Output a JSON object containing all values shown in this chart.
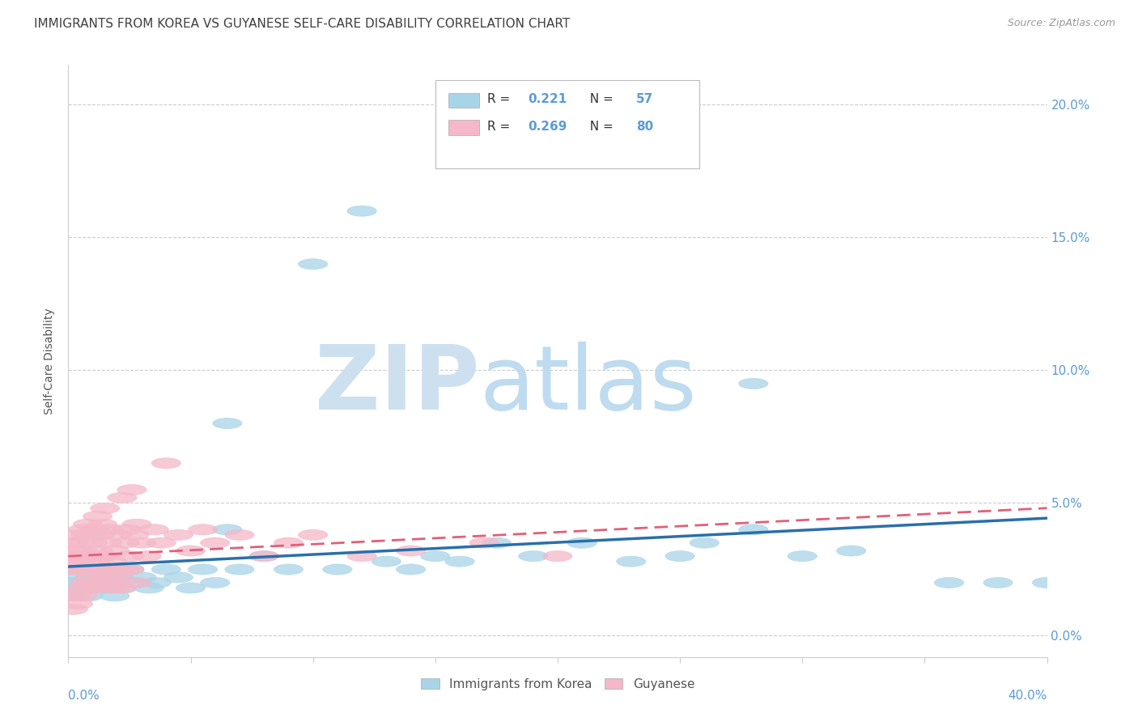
{
  "title": "IMMIGRANTS FROM KOREA VS GUYANESE SELF-CARE DISABILITY CORRELATION CHART",
  "source": "Source: ZipAtlas.com",
  "ylabel": "Self-Care Disability",
  "ytick_labels": [
    "0.0%",
    "5.0%",
    "10.0%",
    "15.0%",
    "20.0%"
  ],
  "ytick_values": [
    0.0,
    0.05,
    0.1,
    0.15,
    0.2
  ],
  "xlim": [
    0.0,
    0.4
  ],
  "ylim": [
    -0.008,
    0.215
  ],
  "color_korea": "#a8d4e8",
  "color_guyanese": "#f4b8c8",
  "line_color_korea": "#2a6faa",
  "line_color_guyanese": "#e0607a",
  "background_color": "#ffffff",
  "grid_color": "#cccccc",
  "title_color": "#404040",
  "right_axis_color": "#5b9bd5",
  "watermark_zip_color": "#cce0f0",
  "watermark_atlas_color": "#b8d8ee",
  "korea_x": [
    0.001,
    0.002,
    0.003,
    0.004,
    0.005,
    0.006,
    0.007,
    0.008,
    0.009,
    0.01,
    0.011,
    0.012,
    0.013,
    0.014,
    0.015,
    0.016,
    0.017,
    0.018,
    0.019,
    0.02,
    0.021,
    0.022,
    0.025,
    0.027,
    0.03,
    0.033,
    0.036,
    0.04,
    0.045,
    0.05,
    0.055,
    0.06,
    0.065,
    0.07,
    0.08,
    0.09,
    0.1,
    0.11,
    0.12,
    0.13,
    0.14,
    0.15,
    0.16,
    0.175,
    0.19,
    0.21,
    0.23,
    0.25,
    0.26,
    0.28,
    0.3,
    0.32,
    0.36,
    0.38,
    0.4,
    0.065,
    0.28
  ],
  "korea_y": [
    0.015,
    0.02,
    0.018,
    0.022,
    0.025,
    0.018,
    0.02,
    0.015,
    0.022,
    0.018,
    0.025,
    0.02,
    0.022,
    0.018,
    0.025,
    0.02,
    0.018,
    0.022,
    0.015,
    0.02,
    0.022,
    0.018,
    0.025,
    0.02,
    0.022,
    0.018,
    0.02,
    0.025,
    0.022,
    0.018,
    0.025,
    0.02,
    0.08,
    0.025,
    0.03,
    0.025,
    0.14,
    0.025,
    0.16,
    0.028,
    0.025,
    0.03,
    0.028,
    0.035,
    0.03,
    0.035,
    0.028,
    0.03,
    0.035,
    0.095,
    0.03,
    0.032,
    0.02,
    0.02,
    0.02,
    0.04,
    0.04
  ],
  "guyanese_x": [
    0.001,
    0.001,
    0.002,
    0.002,
    0.003,
    0.003,
    0.004,
    0.004,
    0.005,
    0.005,
    0.006,
    0.006,
    0.007,
    0.007,
    0.008,
    0.008,
    0.009,
    0.009,
    0.01,
    0.01,
    0.011,
    0.011,
    0.012,
    0.012,
    0.013,
    0.013,
    0.014,
    0.014,
    0.015,
    0.015,
    0.016,
    0.017,
    0.018,
    0.019,
    0.02,
    0.021,
    0.022,
    0.023,
    0.024,
    0.025,
    0.026,
    0.027,
    0.028,
    0.03,
    0.032,
    0.035,
    0.038,
    0.04,
    0.045,
    0.05,
    0.055,
    0.06,
    0.07,
    0.08,
    0.09,
    0.1,
    0.12,
    0.14,
    0.17,
    0.2,
    0.003,
    0.005,
    0.007,
    0.009,
    0.012,
    0.015,
    0.018,
    0.02,
    0.022,
    0.025,
    0.002,
    0.004,
    0.006,
    0.008,
    0.01,
    0.013,
    0.016,
    0.019,
    0.023,
    0.028
  ],
  "guyanese_y": [
    0.025,
    0.03,
    0.028,
    0.035,
    0.025,
    0.032,
    0.03,
    0.038,
    0.028,
    0.035,
    0.032,
    0.04,
    0.03,
    0.038,
    0.025,
    0.042,
    0.03,
    0.038,
    0.025,
    0.035,
    0.04,
    0.028,
    0.032,
    0.045,
    0.03,
    0.038,
    0.025,
    0.042,
    0.03,
    0.048,
    0.035,
    0.04,
    0.028,
    0.032,
    0.038,
    0.025,
    0.052,
    0.035,
    0.04,
    0.03,
    0.055,
    0.038,
    0.042,
    0.035,
    0.03,
    0.04,
    0.035,
    0.065,
    0.038,
    0.032,
    0.04,
    0.035,
    0.038,
    0.03,
    0.035,
    0.038,
    0.03,
    0.032,
    0.035,
    0.03,
    0.015,
    0.018,
    0.02,
    0.022,
    0.018,
    0.025,
    0.02,
    0.022,
    0.018,
    0.025,
    0.01,
    0.012,
    0.015,
    0.018,
    0.02,
    0.025,
    0.022,
    0.018,
    0.025,
    0.02
  ]
}
